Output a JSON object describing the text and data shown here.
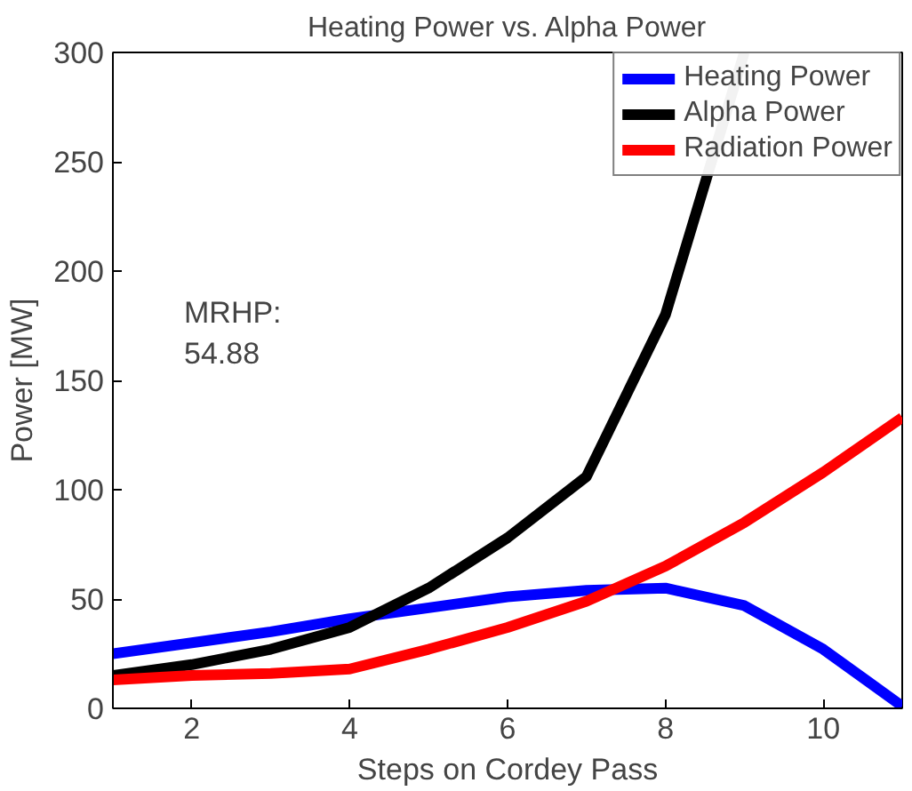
{
  "chart_data": {
    "type": "line",
    "title": "Heating Power vs. Alpha Power",
    "xlabel": "Steps on Cordey Pass",
    "ylabel": "Power [MW]",
    "x": [
      1,
      2,
      3,
      4,
      5,
      6,
      7,
      8,
      9,
      10,
      11
    ],
    "series": [
      {
        "name": "Heating Power",
        "color": "#0000ff",
        "values": [
          25,
          30,
          35,
          41,
          46,
          51,
          54,
          55,
          47,
          27,
          1
        ]
      },
      {
        "name": "Alpha Power",
        "color": "#000000",
        "values": [
          15,
          20,
          27,
          37,
          55,
          78,
          106,
          180,
          300,
          null,
          null
        ]
      },
      {
        "name": "Radiation Power",
        "color": "#ff0000",
        "values": [
          13,
          15,
          16,
          18,
          27,
          37,
          49,
          65,
          85,
          108,
          133
        ]
      }
    ],
    "xlim": [
      1,
      11
    ],
    "ylim": [
      0,
      300
    ],
    "xticks": [
      2,
      4,
      6,
      8,
      10
    ],
    "yticks": [
      0,
      50,
      100,
      150,
      200,
      250,
      300
    ],
    "annotations": [
      "MRHP:\n54.88"
    ],
    "legend": "top right",
    "grid": false,
    "marker": "none",
    "line_style": "solid"
  }
}
